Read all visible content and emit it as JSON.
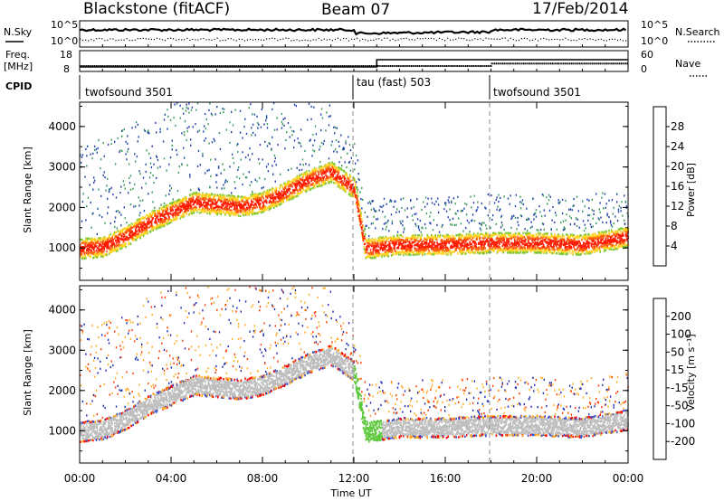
{
  "header": {
    "radar": "Blackstone (fitACF)",
    "beam": "Beam 07",
    "date": "17/Feb/2014"
  },
  "noise_panel": {
    "left_label": "N.Sky",
    "left_ticks": [
      "10^5",
      "10^0"
    ],
    "right_label": "N.Search",
    "right_ticks": [
      "10^5",
      "10^0"
    ]
  },
  "freq_panel": {
    "left_label_1": "Freq.",
    "left_label_2": "[MHz]",
    "left_ticks": [
      "18",
      "8"
    ],
    "right_label": "Nave",
    "right_ticks": [
      "60",
      "0"
    ]
  },
  "cpid_panel": {
    "label": "CPID",
    "segments": [
      {
        "name": "twofsound 3501",
        "start_hour": 0
      },
      {
        "name": "tau (fast) 503",
        "start_hour": 12
      },
      {
        "name": "twofsound 3501",
        "start_hour": 18
      }
    ]
  },
  "x_axis": {
    "label": "Time UT",
    "tick_labels": [
      "00:00",
      "04:00",
      "08:00",
      "12:00",
      "16:00",
      "20:00",
      "00:00"
    ],
    "range_hours": [
      0,
      24
    ]
  },
  "power_panel": {
    "ylabel": "Slant Range [km]",
    "y_ticks": [
      "4000",
      "3000",
      "2000",
      "1000"
    ],
    "yrange_km": [
      200,
      4600
    ],
    "colorbar_label": "Power [dB]",
    "colorbar_ticks": [
      "28",
      "24",
      "20",
      "16",
      "12",
      "8",
      "4"
    ],
    "colorbar_range_db": [
      0,
      32
    ],
    "colors": [
      "#0000ff",
      "#2244aa",
      "#2f6e8f",
      "#3c9a5a",
      "#7ec834",
      "#c8dd22",
      "#ffd21e",
      "#ff9a14",
      "#ff5a0a",
      "#ff1a00"
    ]
  },
  "velocity_panel": {
    "ylabel": "Slant Range [km]",
    "y_ticks": [
      "4000",
      "3000",
      "2000",
      "1000"
    ],
    "yrange_km": [
      200,
      4600
    ],
    "colorbar_label": "Velocity [m s⁻¹]",
    "colorbar_ticks": [
      "200",
      "100",
      "50",
      "15",
      "-15",
      "-50",
      "-100",
      "-200"
    ],
    "colors": [
      "#1a2bb0",
      "#3a4fc8",
      "#3f8f78",
      "#5ec83c",
      "#bdbdbd",
      "#ffaa1e",
      "#ff7a0a",
      "#ff3c00",
      "#ff0000"
    ]
  },
  "chart_data": {
    "type": "heatmap",
    "title": "Blackstone (fitACF) Beam 07 17/Feb/2014",
    "xlabel": "Time UT",
    "ylabel": "Slant Range [km]",
    "xlim_hours": [
      0,
      24
    ],
    "ylim_km": [
      200,
      4600
    ],
    "frequency_mhz": [
      {
        "from_hour": 0,
        "to_hour": 13,
        "value": 10.5
      },
      {
        "from_hour": 13,
        "to_hour": 24,
        "value": 14.5
      }
    ],
    "nave": [
      {
        "from_hour": 0,
        "to_hour": 18,
        "value": 18
      },
      {
        "from_hour": 18,
        "to_hour": 24,
        "value": 26
      }
    ],
    "main_echo_band_km": [
      {
        "hour": 0,
        "range": 1000
      },
      {
        "hour": 1,
        "range": 1050
      },
      {
        "hour": 2,
        "range": 1300
      },
      {
        "hour": 3,
        "range": 1650
      },
      {
        "hour": 4,
        "range": 1900
      },
      {
        "hour": 5,
        "range": 2150
      },
      {
        "hour": 6,
        "range": 2100
      },
      {
        "hour": 7,
        "range": 2050
      },
      {
        "hour": 8,
        "range": 2150
      },
      {
        "hour": 9,
        "range": 2400
      },
      {
        "hour": 10,
        "range": 2700
      },
      {
        "hour": 11,
        "range": 2900
      },
      {
        "hour": 12,
        "range": 2500
      },
      {
        "hour": 12.5,
        "range": 1000
      },
      {
        "hour": 14,
        "range": 1100
      },
      {
        "hour": 16,
        "range": 1100
      },
      {
        "hour": 18,
        "range": 1150
      },
      {
        "hour": 20,
        "range": 1150
      },
      {
        "hour": 22,
        "range": 1100
      },
      {
        "hour": 24,
        "range": 1300
      }
    ]
  }
}
